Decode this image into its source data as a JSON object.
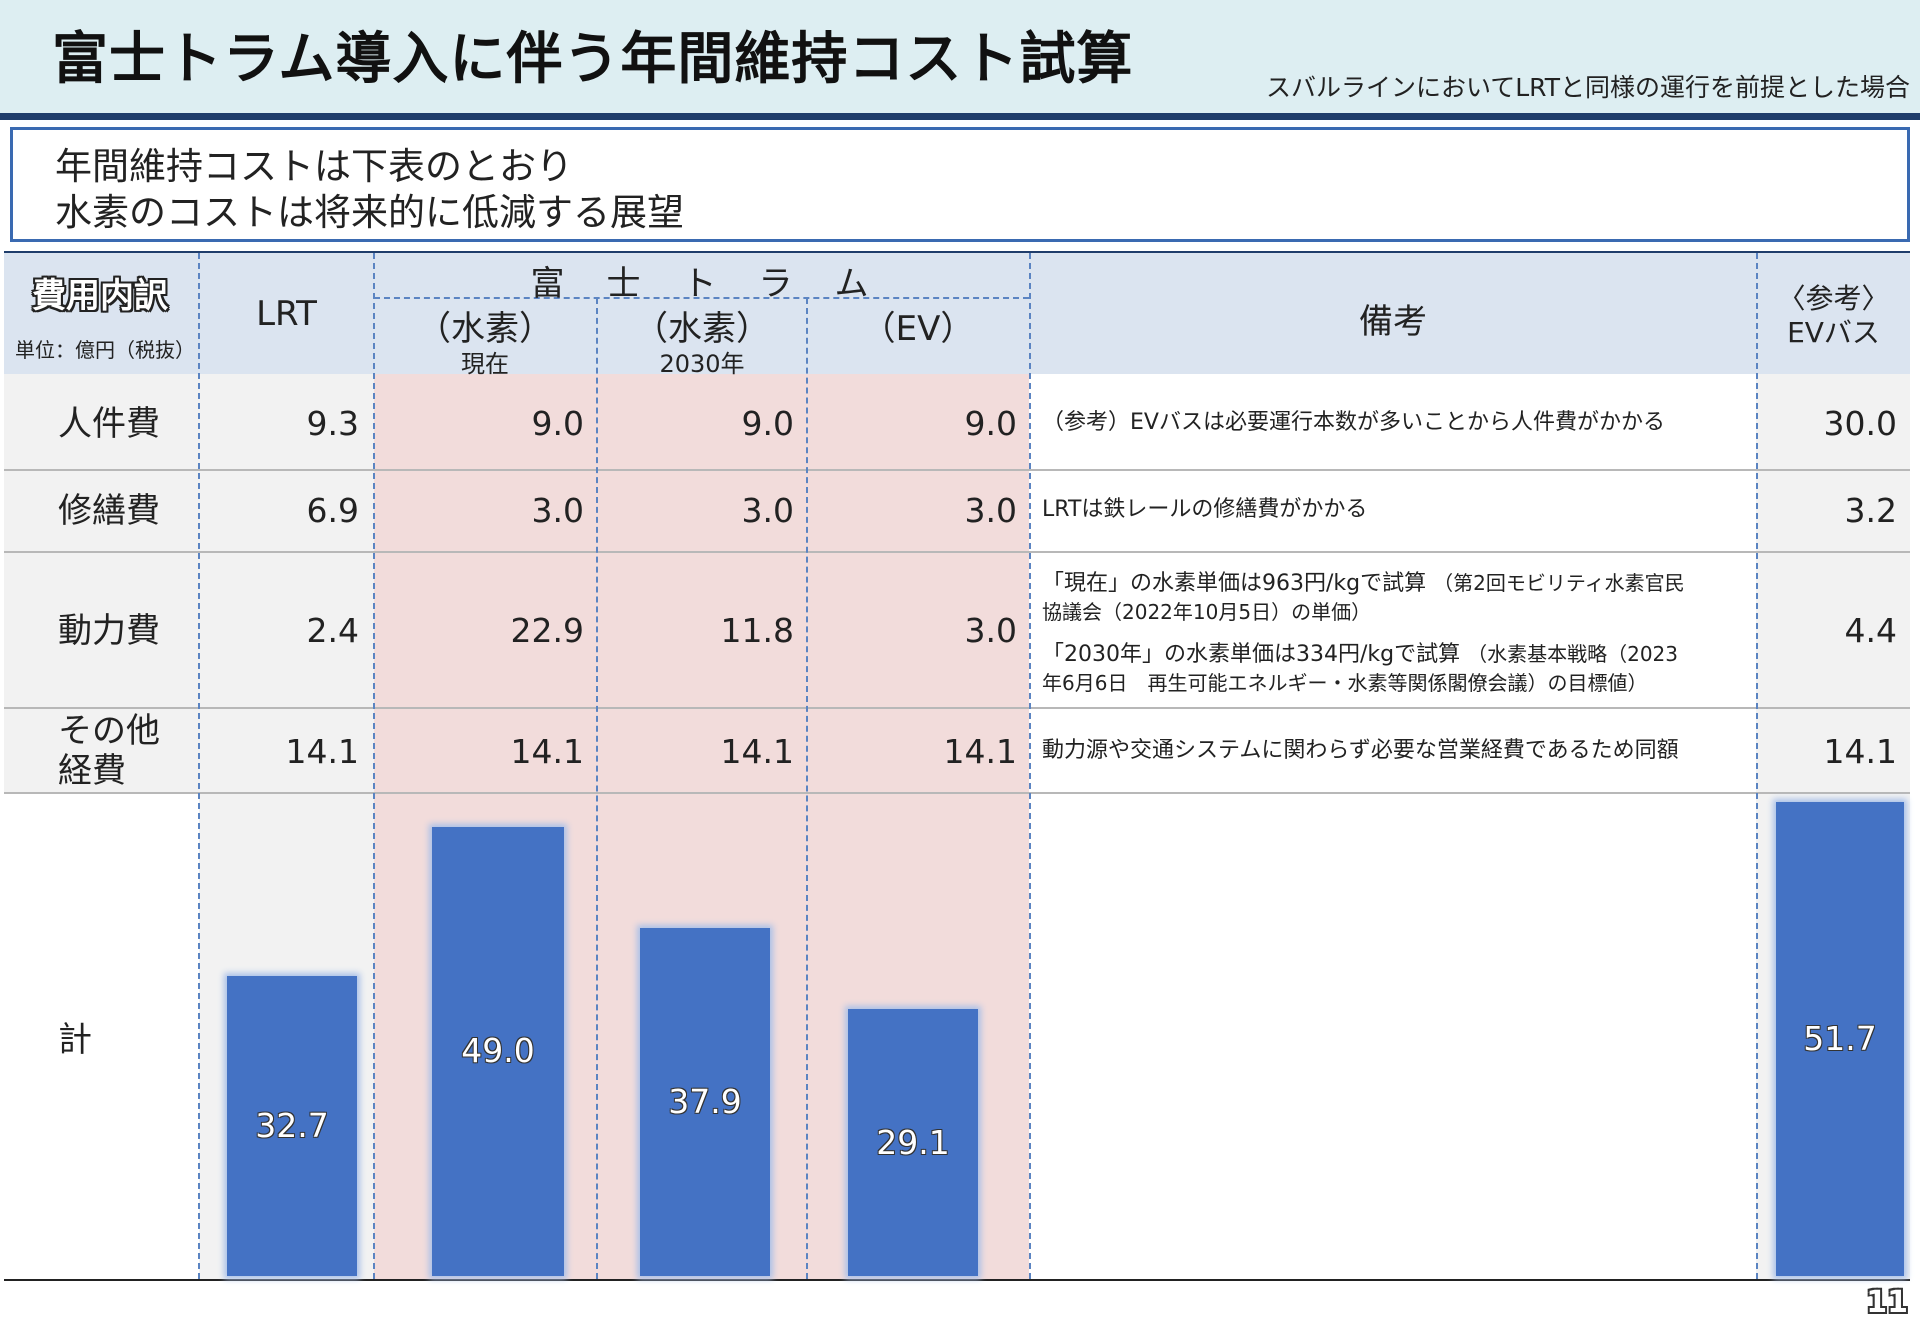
{
  "header": {
    "title": "富士トラム導入に伴う年間維持コスト試算",
    "subtitle": "スバルラインにおいてLRTと同様の運行を前提とした場合"
  },
  "summary": [
    "年間維持コストは下表のとおり",
    "水素のコストは将来的に低減する展望"
  ],
  "table": {
    "category_header": "費用内訳",
    "unit": "単位：億円（税抜）",
    "col_lrt": "LRT",
    "group_header": "富　士　ト　ラ　ム",
    "col_h2_now": {
      "main": "（水素）",
      "sub": "現在"
    },
    "col_h2_2030": {
      "main": "（水素）",
      "sub": "2030年"
    },
    "col_ev": "（EV）",
    "col_remarks": "備考",
    "col_ref": [
      "〈参考〉",
      "EVバス"
    ],
    "rows": [
      {
        "label": [
          "人件費"
        ],
        "lrt": "9.3",
        "h2_now": "9.0",
        "h2_2030": "9.0",
        "ev": "9.0",
        "remarks": [
          "（参考）EVバスは必要運行本数が多いことから人件費がかかる"
        ],
        "ref": "30.0"
      },
      {
        "label": [
          "修繕費"
        ],
        "lrt": "6.9",
        "h2_now": "3.0",
        "h2_2030": "3.0",
        "ev": "3.0",
        "remarks": [
          "LRTは鉄レールの修繕費がかかる"
        ],
        "ref": "3.2"
      },
      {
        "label": [
          "動力費"
        ],
        "lrt": "2.4",
        "h2_now": "22.9",
        "h2_2030": "11.8",
        "ev": "3.0",
        "remarks_detail": [
          {
            "main": "「現在」の水素単価は963円/kgで試算",
            "note": "（第2回モビリティ水素官民",
            "cont": "協議会（2022年10月5日）の単価）"
          },
          {
            "main": "「2030年」の水素単価は334円/kgで試算",
            "note": "（水素基本戦略（2023",
            "cont": "年6月6日　再生可能エネルギー・水素等関係閣僚会議）の目標値）"
          }
        ],
        "ref": "4.4"
      },
      {
        "label": [
          "その他",
          "経費"
        ],
        "lrt": "14.1",
        "h2_now": "14.1",
        "h2_2030": "14.1",
        "ev": "14.1",
        "remarks": [
          "動力源や交通システムに関わらず必要な営業経費であるため同額"
        ],
        "ref": "14.1"
      }
    ],
    "total_label": "計"
  },
  "chart_data": {
    "type": "bar",
    "categories": [
      "LRT",
      "（水素）現在",
      "（水素）2030年",
      "（EV）",
      "〈参考〉EVバス"
    ],
    "values": [
      32.7,
      49.0,
      37.9,
      29.1,
      51.7
    ],
    "labels": [
      "32.7",
      "49.0",
      "37.9",
      "29.1",
      "51.7"
    ],
    "bar_color": "#4472c4"
  },
  "page_number": "11"
}
